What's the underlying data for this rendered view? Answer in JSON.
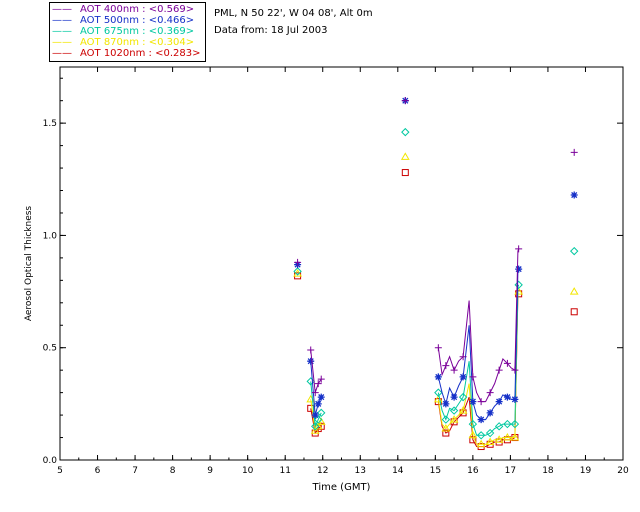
{
  "header": {
    "site_line": "PML, N 50 22', W 04 08', Alt 0m",
    "date_line": "Data from: 18 Jul 2003"
  },
  "legend": [
    {
      "label": "AOT  400nm : <0.569>",
      "color": "#7a0099"
    },
    {
      "label": "AOT  500nm : <0.466>",
      "color": "#1530c8"
    },
    {
      "label": "AOT  675nm : <0.369>",
      "color": "#00c8a0"
    },
    {
      "label": "AOT  870nm : <0.304>",
      "color": "#f2e600"
    },
    {
      "label": "AOT 1020nm : <0.283>",
      "color": "#cc0000"
    }
  ],
  "chart_data": {
    "type": "scatter",
    "xlabel": "Time (GMT)",
    "ylabel": "Aerosol Optical Thickness",
    "xlim": [
      5,
      20
    ],
    "ylim": [
      0,
      1.75
    ],
    "xticks": [
      "5",
      "6",
      "7",
      "8",
      "9",
      "10",
      "11",
      "12",
      "13",
      "14",
      "15",
      "16",
      "17",
      "18",
      "19",
      "20"
    ],
    "yticks": [
      "0.0",
      "0.5",
      "1.0",
      "1.5"
    ],
    "segments": [
      [
        11.33,
        11.33
      ],
      [
        11.68,
        11.8,
        11.88,
        11.96
      ],
      [
        14.2,
        14.2
      ],
      [
        15.08,
        15.18,
        15.28,
        15.38,
        15.5,
        15.62,
        15.74,
        15.9,
        16.0,
        16.1,
        16.22,
        16.34,
        16.46,
        16.58,
        16.7,
        16.8,
        16.92,
        17.02,
        17.12,
        17.2,
        17.22
      ],
      [
        18.7,
        18.7
      ]
    ],
    "series": [
      {
        "name": "AOT  400nm",
        "marker": "plus",
        "segments": [
          [
            0.88
          ],
          [
            0.49,
            0.3,
            0.34,
            0.36
          ],
          [
            1.6
          ],
          [
            0.5,
            0.38,
            0.42,
            0.46,
            0.4,
            0.44,
            0.46,
            0.71,
            0.37,
            0.3,
            0.26,
            0.26,
            0.3,
            0.34,
            0.4,
            0.45,
            0.43,
            0.41,
            0.4,
            0.93,
            0.94
          ],
          [
            1.37
          ]
        ]
      },
      {
        "name": "AOT  500nm",
        "marker": "asterisk",
        "segments": [
          [
            0.87
          ],
          [
            0.44,
            0.2,
            0.25,
            0.28
          ],
          [
            1.6
          ],
          [
            0.37,
            0.3,
            0.25,
            0.32,
            0.28,
            0.33,
            0.37,
            0.6,
            0.26,
            0.2,
            0.18,
            0.18,
            0.21,
            0.24,
            0.26,
            0.29,
            0.28,
            0.27,
            0.27,
            0.84,
            0.85
          ],
          [
            1.18
          ]
        ]
      },
      {
        "name": "AOT  675nm",
        "marker": "diamond",
        "segments": [
          [
            0.84
          ],
          [
            0.35,
            0.15,
            0.18,
            0.21
          ],
          [
            1.46
          ],
          [
            0.3,
            0.22,
            0.18,
            0.23,
            0.22,
            0.25,
            0.28,
            0.44,
            0.16,
            0.11,
            0.11,
            0.11,
            0.12,
            0.14,
            0.15,
            0.16,
            0.16,
            0.16,
            0.16,
            0.77,
            0.78
          ],
          [
            0.93
          ]
        ]
      },
      {
        "name": "AOT  870nm",
        "marker": "triangle",
        "segments": [
          [
            0.83
          ],
          [
            0.27,
            0.13,
            0.15,
            0.17
          ],
          [
            1.35
          ],
          [
            0.27,
            0.16,
            0.14,
            0.16,
            0.18,
            0.2,
            0.22,
            0.34,
            0.11,
            0.07,
            0.07,
            0.07,
            0.08,
            0.09,
            0.09,
            0.1,
            0.1,
            0.1,
            0.1,
            0.75,
            0.75
          ],
          [
            0.75
          ]
        ]
      },
      {
        "name": "AOT 1020nm",
        "marker": "square",
        "segments": [
          [
            0.82
          ],
          [
            0.23,
            0.12,
            0.14,
            0.15
          ],
          [
            1.28
          ],
          [
            0.26,
            0.15,
            0.12,
            0.13,
            0.17,
            0.19,
            0.21,
            0.28,
            0.09,
            0.06,
            0.06,
            0.06,
            0.07,
            0.08,
            0.08,
            0.09,
            0.09,
            0.09,
            0.1,
            0.74,
            0.74
          ],
          [
            0.66
          ]
        ]
      }
    ]
  }
}
